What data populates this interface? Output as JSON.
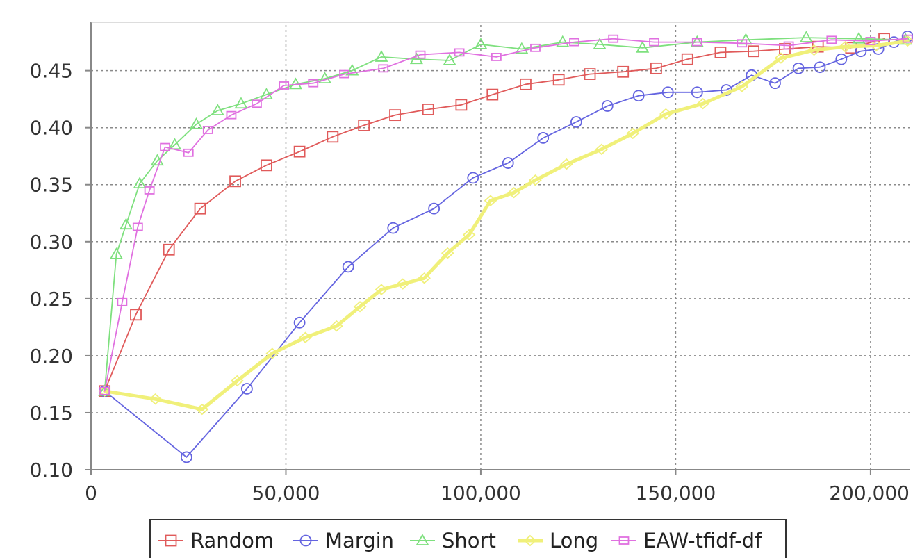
{
  "chart_data": {
    "type": "line",
    "title": "",
    "xlabel": "",
    "ylabel": "",
    "xlim": [
      0,
      210000
    ],
    "ylim": [
      0.1,
      0.49
    ],
    "x_ticks": [
      0,
      50000,
      100000,
      150000,
      200000
    ],
    "x_tick_labels": [
      "0",
      "50,000",
      "100,000",
      "150,000",
      "200,000"
    ],
    "y_ticks": [
      0.1,
      0.15,
      0.2,
      0.25,
      0.3,
      0.35,
      0.4,
      0.45
    ],
    "y_tick_labels": [
      "0.10",
      "0.15",
      "0.20",
      "0.25",
      "0.30",
      "0.35",
      "0.40",
      "0.45"
    ],
    "grid": true,
    "legend_position": "bottom",
    "series": [
      {
        "name": "Random",
        "color": "#e05a5a",
        "marker": "square",
        "points": [
          [
            3500,
            0.169
          ],
          [
            11500,
            0.236
          ],
          [
            20000,
            0.293
          ],
          [
            28000,
            0.329
          ],
          [
            37000,
            0.353
          ],
          [
            45000,
            0.367
          ],
          [
            53500,
            0.379
          ],
          [
            62000,
            0.392
          ],
          [
            70000,
            0.402
          ],
          [
            78000,
            0.411
          ],
          [
            86500,
            0.416
          ],
          [
            95000,
            0.42
          ],
          [
            103000,
            0.429
          ],
          [
            111500,
            0.438
          ],
          [
            120000,
            0.442
          ],
          [
            128000,
            0.447
          ],
          [
            136500,
            0.449
          ],
          [
            145000,
            0.452
          ],
          [
            153000,
            0.46
          ],
          [
            161500,
            0.466
          ],
          [
            170000,
            0.467
          ],
          [
            178000,
            0.469
          ],
          [
            186500,
            0.471
          ],
          [
            195000,
            0.47
          ],
          [
            203500,
            0.478
          ]
        ]
      },
      {
        "name": "Margin",
        "color": "#6464e0",
        "marker": "circle",
        "points": [
          [
            3500,
            0.169
          ],
          [
            24500,
            0.111
          ],
          [
            40000,
            0.171
          ],
          [
            53500,
            0.229
          ],
          [
            66000,
            0.278
          ],
          [
            77500,
            0.312
          ],
          [
            88000,
            0.329
          ],
          [
            98000,
            0.356
          ],
          [
            107000,
            0.369
          ],
          [
            116000,
            0.391
          ],
          [
            124500,
            0.405
          ],
          [
            132500,
            0.419
          ],
          [
            140500,
            0.428
          ],
          [
            148000,
            0.431
          ],
          [
            155500,
            0.431
          ],
          [
            163000,
            0.433
          ],
          [
            169500,
            0.446
          ],
          [
            175500,
            0.439
          ],
          [
            181500,
            0.452
          ],
          [
            187000,
            0.453
          ],
          [
            192500,
            0.46
          ],
          [
            197500,
            0.467
          ],
          [
            202000,
            0.469
          ],
          [
            206000,
            0.475
          ],
          [
            209500,
            0.48
          ]
        ]
      },
      {
        "name": "Short",
        "color": "#7ee07e",
        "marker": "triangle",
        "points": [
          [
            3500,
            0.169
          ],
          [
            6500,
            0.289
          ],
          [
            9000,
            0.315
          ],
          [
            12500,
            0.351
          ],
          [
            17000,
            0.371
          ],
          [
            21500,
            0.385
          ],
          [
            27000,
            0.403
          ],
          [
            32500,
            0.415
          ],
          [
            38500,
            0.421
          ],
          [
            45000,
            0.429
          ],
          [
            52500,
            0.438
          ],
          [
            60000,
            0.443
          ],
          [
            67000,
            0.45
          ],
          [
            74500,
            0.462
          ],
          [
            83500,
            0.46
          ],
          [
            92000,
            0.459
          ],
          [
            100000,
            0.473
          ],
          [
            110500,
            0.469
          ],
          [
            121000,
            0.475
          ],
          [
            130500,
            0.473
          ],
          [
            141500,
            0.47
          ],
          [
            155500,
            0.475
          ],
          [
            168000,
            0.477
          ],
          [
            183500,
            0.479
          ],
          [
            197000,
            0.478
          ],
          [
            209000,
            0.477
          ]
        ]
      },
      {
        "name": "Long",
        "color": "#f0f07a",
        "marker": "diamond",
        "points": [
          [
            3500,
            0.169
          ],
          [
            16500,
            0.162
          ],
          [
            28500,
            0.153
          ],
          [
            37500,
            0.178
          ],
          [
            46500,
            0.202
          ],
          [
            55000,
            0.216
          ],
          [
            63000,
            0.226
          ],
          [
            69000,
            0.243
          ],
          [
            74500,
            0.258
          ],
          [
            80000,
            0.263
          ],
          [
            85500,
            0.268
          ],
          [
            91500,
            0.29
          ],
          [
            97000,
            0.306
          ],
          [
            102500,
            0.336
          ],
          [
            108500,
            0.343
          ],
          [
            114000,
            0.354
          ],
          [
            122000,
            0.368
          ],
          [
            131000,
            0.381
          ],
          [
            139000,
            0.395
          ],
          [
            147500,
            0.412
          ],
          [
            157000,
            0.421
          ],
          [
            167000,
            0.436
          ],
          [
            177000,
            0.461
          ],
          [
            185500,
            0.468
          ],
          [
            193500,
            0.471
          ],
          [
            201500,
            0.472
          ],
          [
            209500,
            0.476
          ]
        ]
      },
      {
        "name": "EAW-tfidf-df",
        "color": "#e070e0",
        "marker": "square-small",
        "points": [
          [
            3500,
            0.169
          ],
          [
            8000,
            0.247
          ],
          [
            12000,
            0.313
          ],
          [
            15000,
            0.345
          ],
          [
            19000,
            0.383
          ],
          [
            25000,
            0.378
          ],
          [
            30000,
            0.398
          ],
          [
            36000,
            0.411
          ],
          [
            42500,
            0.421
          ],
          [
            49500,
            0.437
          ],
          [
            57000,
            0.439
          ],
          [
            65000,
            0.447
          ],
          [
            75000,
            0.452
          ],
          [
            84500,
            0.464
          ],
          [
            94500,
            0.466
          ],
          [
            104000,
            0.462
          ],
          [
            114000,
            0.47
          ],
          [
            124000,
            0.475
          ],
          [
            134000,
            0.478
          ],
          [
            144500,
            0.475
          ],
          [
            155500,
            0.475
          ],
          [
            167000,
            0.474
          ],
          [
            179000,
            0.472
          ],
          [
            190000,
            0.477
          ],
          [
            200000,
            0.476
          ],
          [
            209500,
            0.478
          ]
        ]
      }
    ]
  }
}
